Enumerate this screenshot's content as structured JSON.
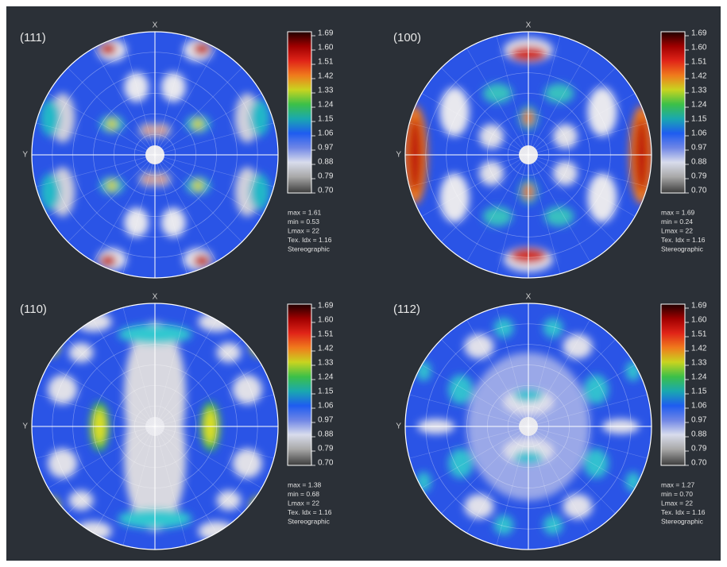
{
  "panels": [
    {
      "label": "(111)",
      "x_axis": "X",
      "y_axis": "Y",
      "scale": [
        "1.69",
        "1.60",
        "1.51",
        "1.42",
        "1.33",
        "1.24",
        "1.15",
        "1.06",
        "0.97",
        "0.88",
        "0.79",
        "0.70"
      ],
      "stats": [
        "max = 1.61",
        "min = 0.53",
        "Lmax = 22",
        "Tex. Idx = 1.16",
        "Stereographic"
      ]
    },
    {
      "label": "(100)",
      "x_axis": "X",
      "y_axis": "Y",
      "scale": [
        "1.69",
        "1.60",
        "1.51",
        "1.42",
        "1.33",
        "1.24",
        "1.15",
        "1.06",
        "0.97",
        "0.88",
        "0.79",
        "0.70"
      ],
      "stats": [
        "max = 1.69",
        "min = 0.24",
        "Lmax = 22",
        "Tex. Idx = 1.16",
        "Stereographic"
      ]
    },
    {
      "label": "(110)",
      "x_axis": "X",
      "y_axis": "Y",
      "scale": [
        "1.69",
        "1.60",
        "1.51",
        "1.42",
        "1.33",
        "1.24",
        "1.15",
        "1.06",
        "0.97",
        "0.88",
        "0.79",
        "0.70"
      ],
      "stats": [
        "max = 1.38",
        "min = 0.68",
        "Lmax = 22",
        "Tex. Idx = 1.16",
        "Stereographic"
      ]
    },
    {
      "label": "(112)",
      "x_axis": "X",
      "y_axis": "Y",
      "scale": [
        "1.69",
        "1.60",
        "1.51",
        "1.42",
        "1.33",
        "1.24",
        "1.15",
        "1.06",
        "0.97",
        "0.88",
        "0.79",
        "0.70"
      ],
      "stats": [
        "max = 1.27",
        "min = 0.70",
        "Lmax = 22",
        "Tex. Idx = 1.16",
        "Stereographic"
      ]
    }
  ]
}
